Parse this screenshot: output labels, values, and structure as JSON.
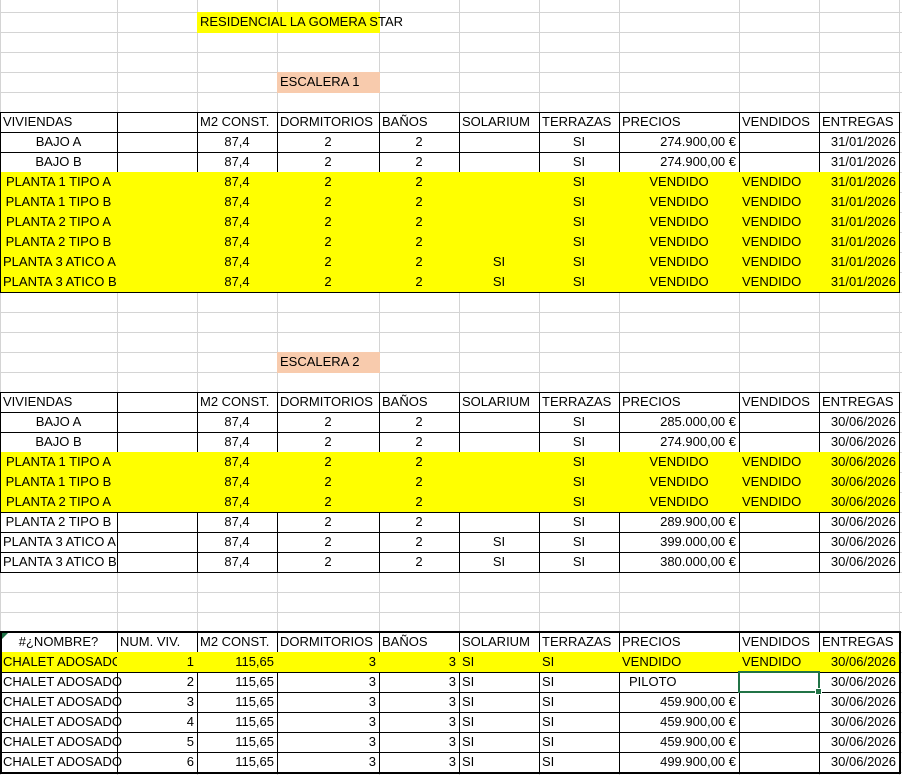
{
  "title": "RESIDENCIAL LA GOMERA STAR",
  "colors": {
    "sold_highlight": "#ffff00",
    "section_label": "#f8cbad",
    "selection": "#217346"
  },
  "sections": [
    {
      "label": "ESCALERA 1",
      "headers": [
        "VIVIENDAS",
        "",
        "M2 CONST.",
        "DORMITORIOS",
        "BAÑOS",
        "SOLARIUM",
        "TERRAZAS",
        "PRECIOS",
        "VENDIDOS",
        "ENTREGAS"
      ],
      "rows": [
        {
          "highlight": false,
          "cells": [
            "BAJO A",
            "",
            "87,4",
            "2",
            "2",
            "",
            "SI",
            "274.900,00 €",
            "",
            "31/01/2026"
          ]
        },
        {
          "highlight": false,
          "cells": [
            "BAJO B",
            "",
            "87,4",
            "2",
            "2",
            "",
            "SI",
            "274.900,00 €",
            "",
            "31/01/2026"
          ]
        },
        {
          "highlight": true,
          "cells": [
            "PLANTA 1 TIPO A",
            "",
            "87,4",
            "2",
            "2",
            "",
            "SI",
            "VENDIDO",
            "VENDIDO",
            "31/01/2026"
          ]
        },
        {
          "highlight": true,
          "cells": [
            "PLANTA 1 TIPO B",
            "",
            "87,4",
            "2",
            "2",
            "",
            "SI",
            "VENDIDO",
            "VENDIDO",
            "31/01/2026"
          ]
        },
        {
          "highlight": true,
          "cells": [
            "PLANTA 2 TIPO A",
            "",
            "87,4",
            "2",
            "2",
            "",
            "SI",
            "VENDIDO",
            "VENDIDO",
            "31/01/2026"
          ]
        },
        {
          "highlight": true,
          "cells": [
            "PLANTA 2 TIPO B",
            "",
            "87,4",
            "2",
            "2",
            "",
            "SI",
            "VENDIDO",
            "VENDIDO",
            "31/01/2026"
          ]
        },
        {
          "highlight": true,
          "cells": [
            "PLANTA 3 ATICO A",
            "",
            "87,4",
            "2",
            "2",
            "SI",
            "SI",
            "VENDIDO",
            "VENDIDO",
            "31/01/2026"
          ]
        },
        {
          "highlight": true,
          "cells": [
            "PLANTA 3 ATICO B",
            "",
            "87,4",
            "2",
            "2",
            "SI",
            "SI",
            "VENDIDO",
            "VENDIDO",
            "31/01/2026"
          ]
        }
      ]
    },
    {
      "label": "ESCALERA 2",
      "headers": [
        "VIVIENDAS",
        "",
        "M2 CONST.",
        "DORMITORIOS",
        "BAÑOS",
        "SOLARIUM",
        "TERRAZAS",
        "PRECIOS",
        "VENDIDOS",
        "ENTREGAS"
      ],
      "rows": [
        {
          "highlight": false,
          "cells": [
            "BAJO A",
            "",
            "87,4",
            "2",
            "2",
            "",
            "SI",
            "285.000,00 €",
            "",
            "30/06/2026"
          ]
        },
        {
          "highlight": false,
          "cells": [
            "BAJO B",
            "",
            "87,4",
            "2",
            "2",
            "",
            "SI",
            "274.900,00 €",
            "",
            "30/06/2026"
          ]
        },
        {
          "highlight": true,
          "cells": [
            "PLANTA 1 TIPO A",
            "",
            "87,4",
            "2",
            "2",
            "",
            "SI",
            "VENDIDO",
            "VENDIDO",
            "30/06/2026"
          ]
        },
        {
          "highlight": true,
          "cells": [
            "PLANTA 1 TIPO B",
            "",
            "87,4",
            "2",
            "2",
            "",
            "SI",
            "VENDIDO",
            "VENDIDO",
            "30/06/2026"
          ]
        },
        {
          "highlight": true,
          "cells": [
            "PLANTA 2 TIPO A",
            "",
            "87,4",
            "2",
            "2",
            "",
            "SI",
            "VENDIDO",
            "VENDIDO",
            "30/06/2026"
          ]
        },
        {
          "highlight": false,
          "cells": [
            "PLANTA 2 TIPO B",
            "",
            "87,4",
            "2",
            "2",
            "",
            "SI",
            "289.900,00 €",
            "",
            "30/06/2026"
          ]
        },
        {
          "highlight": false,
          "cells": [
            "PLANTA 3 ATICO A",
            "",
            "87,4",
            "2",
            "2",
            "SI",
            "SI",
            "399.000,00 €",
            "",
            "30/06/2026"
          ]
        },
        {
          "highlight": false,
          "cells": [
            "PLANTA 3 ATICO B",
            "",
            "87,4",
            "2",
            "2",
            "SI",
            "SI",
            "380.000,00 €",
            "",
            "30/06/2026"
          ]
        }
      ]
    },
    {
      "label": "",
      "headers": [
        "#¿NOMBRE?",
        "NUM. VIV.",
        "M2 CONST.",
        "DORMITORIOS",
        "BAÑOS",
        "SOLARIUM",
        "TERRAZAS",
        "PRECIOS",
        "VENDIDOS",
        "ENTREGAS"
      ],
      "rows": [
        {
          "highlight": true,
          "cells": [
            "CHALET ADOSADO",
            "1",
            "115,65",
            "3",
            "3",
            "SI",
            "SI",
            "VENDIDO",
            "VENDIDO",
            "30/06/2026"
          ]
        },
        {
          "highlight": false,
          "cells": [
            "CHALET ADOSADO",
            "2",
            "115,65",
            "3",
            "3",
            "SI",
            "SI",
            " PILOTO",
            "",
            "30/06/2026"
          ]
        },
        {
          "highlight": false,
          "cells": [
            "CHALET ADOSADO",
            "3",
            "115,65",
            "3",
            "3",
            "SI",
            "SI",
            "459.900,00 €",
            "",
            "30/06/2026"
          ]
        },
        {
          "highlight": false,
          "cells": [
            "CHALET ADOSADO",
            "4",
            "115,65",
            "3",
            "3",
            "SI",
            "SI",
            "459.900,00 €",
            "",
            "30/06/2026"
          ]
        },
        {
          "highlight": false,
          "cells": [
            "CHALET ADOSADO",
            "5",
            "115,65",
            "3",
            "3",
            "SI",
            "SI",
            "459.900,00 €",
            "",
            "30/06/2026"
          ]
        },
        {
          "highlight": false,
          "cells": [
            "CHALET ADOSADO",
            "6",
            "115,65",
            "3",
            "3",
            "SI",
            "SI",
            "499.900,00 €",
            "",
            "30/06/2026"
          ]
        }
      ]
    }
  ]
}
